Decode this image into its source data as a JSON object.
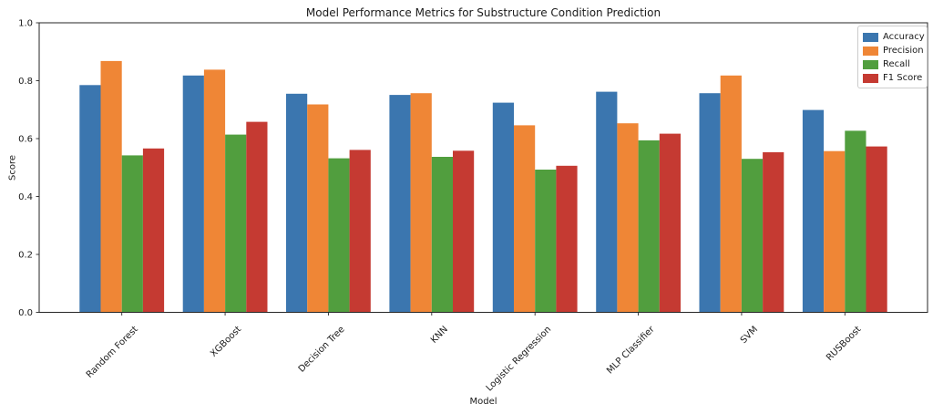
{
  "chart_data": {
    "type": "bar",
    "title": "Model Performance Metrics for Substructure Condition Prediction",
    "xlabel": "Model",
    "ylabel": "Score",
    "ylim": [
      0.0,
      1.0
    ],
    "yticks": [
      "0.0",
      "0.2",
      "0.4",
      "0.6",
      "0.8",
      "1.0"
    ],
    "grid": false,
    "legend_position": "upper right",
    "categories": [
      "Random Forest",
      "XGBoost",
      "Decision Tree",
      "KNN",
      "Logistic Regression",
      "MLP Classifier",
      "SVM",
      "RUSBoost"
    ],
    "series": [
      {
        "name": "Accuracy",
        "color": "#3B76AF",
        "values": [
          0.785,
          0.818,
          0.755,
          0.751,
          0.724,
          0.762,
          0.757,
          0.699
        ]
      },
      {
        "name": "Precision",
        "color": "#EF8636",
        "values": [
          0.868,
          0.838,
          0.718,
          0.757,
          0.646,
          0.653,
          0.818,
          0.557
        ]
      },
      {
        "name": "Recall",
        "color": "#519E3E",
        "values": [
          0.542,
          0.614,
          0.532,
          0.537,
          0.493,
          0.594,
          0.53,
          0.627
        ]
      },
      {
        "name": "F1 Score",
        "color": "#C53A32",
        "values": [
          0.566,
          0.658,
          0.561,
          0.558,
          0.506,
          0.617,
          0.553,
          0.573
        ]
      }
    ]
  }
}
